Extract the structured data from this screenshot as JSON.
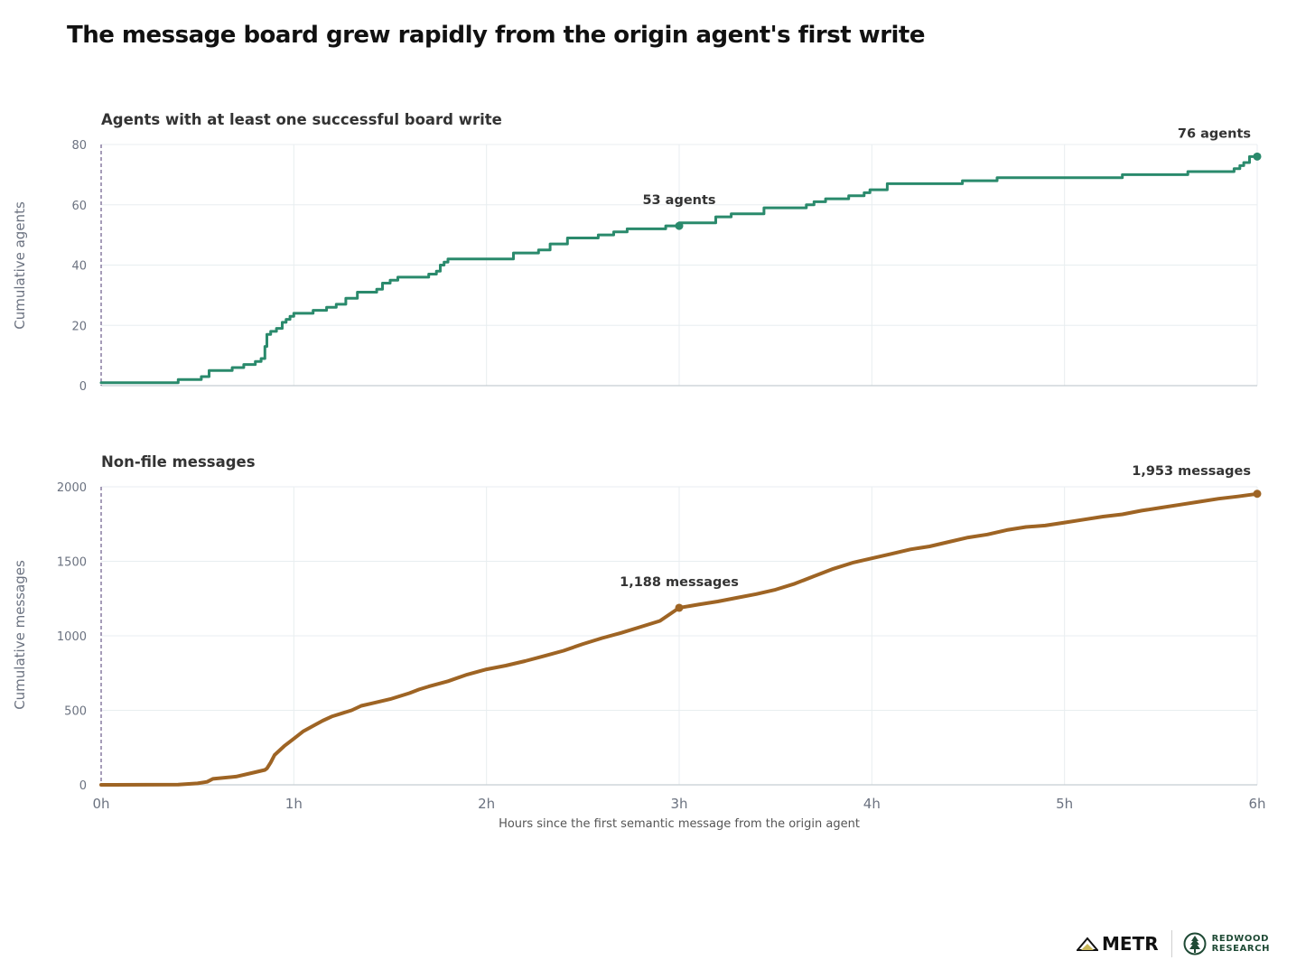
{
  "title": "The message board grew rapidly from the origin agent's first write",
  "xlabel": "Hours since the first semantic message from the origin agent",
  "x_tick_labels": [
    "0h",
    "1h",
    "2h",
    "3h",
    "4h",
    "5h",
    "6h"
  ],
  "logos": {
    "metr": "METR",
    "redwood_line1": "REDWOOD",
    "redwood_line2": "RESEARCH"
  },
  "colors": {
    "agents": "#2a8a6c",
    "messages": "#9e6424",
    "origin_marker": "#6a5a8a",
    "grid": "#e8eef0"
  },
  "chart_data": [
    {
      "type": "line",
      "subtitle": "Agents with at least one successful board write",
      "ylabel": "Cumulative agents",
      "xlim": [
        0,
        6
      ],
      "ylim": [
        0,
        80
      ],
      "y_ticks": [
        0,
        20,
        40,
        60,
        80
      ],
      "step": true,
      "color": "#2a8a6c",
      "points": [
        [
          0,
          1
        ],
        [
          0.4,
          1
        ],
        [
          0.4,
          2
        ],
        [
          0.52,
          2
        ],
        [
          0.52,
          3
        ],
        [
          0.56,
          3
        ],
        [
          0.56,
          5
        ],
        [
          0.68,
          5
        ],
        [
          0.68,
          6
        ],
        [
          0.74,
          6
        ],
        [
          0.74,
          7
        ],
        [
          0.8,
          7
        ],
        [
          0.8,
          8
        ],
        [
          0.83,
          8
        ],
        [
          0.83,
          9
        ],
        [
          0.85,
          9
        ],
        [
          0.85,
          13
        ],
        [
          0.86,
          13
        ],
        [
          0.86,
          17
        ],
        [
          0.88,
          17
        ],
        [
          0.88,
          18
        ],
        [
          0.91,
          18
        ],
        [
          0.91,
          19
        ],
        [
          0.94,
          19
        ],
        [
          0.94,
          21
        ],
        [
          0.96,
          21
        ],
        [
          0.96,
          22
        ],
        [
          0.98,
          22
        ],
        [
          0.98,
          23
        ],
        [
          1.0,
          23
        ],
        [
          1.0,
          24
        ],
        [
          1.1,
          24
        ],
        [
          1.1,
          25
        ],
        [
          1.17,
          25
        ],
        [
          1.17,
          26
        ],
        [
          1.22,
          26
        ],
        [
          1.22,
          27
        ],
        [
          1.27,
          27
        ],
        [
          1.27,
          29
        ],
        [
          1.33,
          29
        ],
        [
          1.33,
          31
        ],
        [
          1.43,
          31
        ],
        [
          1.43,
          32
        ],
        [
          1.46,
          32
        ],
        [
          1.46,
          34
        ],
        [
          1.5,
          34
        ],
        [
          1.5,
          35
        ],
        [
          1.54,
          35
        ],
        [
          1.54,
          36
        ],
        [
          1.7,
          36
        ],
        [
          1.7,
          37
        ],
        [
          1.74,
          37
        ],
        [
          1.74,
          38
        ],
        [
          1.76,
          38
        ],
        [
          1.76,
          40
        ],
        [
          1.78,
          40
        ],
        [
          1.78,
          41
        ],
        [
          1.8,
          41
        ],
        [
          1.8,
          42
        ],
        [
          2.14,
          42
        ],
        [
          2.14,
          44
        ],
        [
          2.27,
          44
        ],
        [
          2.27,
          45
        ],
        [
          2.33,
          45
        ],
        [
          2.33,
          47
        ],
        [
          2.42,
          47
        ],
        [
          2.42,
          49
        ],
        [
          2.58,
          49
        ],
        [
          2.58,
          50
        ],
        [
          2.66,
          50
        ],
        [
          2.66,
          51
        ],
        [
          2.73,
          51
        ],
        [
          2.73,
          52
        ],
        [
          2.93,
          52
        ],
        [
          2.93,
          53
        ],
        [
          3.0,
          53
        ],
        [
          3.0,
          54
        ],
        [
          3.19,
          54
        ],
        [
          3.19,
          56
        ],
        [
          3.27,
          56
        ],
        [
          3.27,
          57
        ],
        [
          3.44,
          57
        ],
        [
          3.44,
          59
        ],
        [
          3.66,
          59
        ],
        [
          3.66,
          60
        ],
        [
          3.7,
          60
        ],
        [
          3.7,
          61
        ],
        [
          3.76,
          61
        ],
        [
          3.76,
          62
        ],
        [
          3.88,
          62
        ],
        [
          3.88,
          63
        ],
        [
          3.96,
          63
        ],
        [
          3.96,
          64
        ],
        [
          3.99,
          64
        ],
        [
          3.99,
          65
        ],
        [
          4.08,
          65
        ],
        [
          4.08,
          67
        ],
        [
          4.47,
          67
        ],
        [
          4.47,
          68
        ],
        [
          4.65,
          68
        ],
        [
          4.65,
          69
        ],
        [
          5.3,
          69
        ],
        [
          5.3,
          70
        ],
        [
          5.64,
          70
        ],
        [
          5.64,
          71
        ],
        [
          5.88,
          71
        ],
        [
          5.88,
          72
        ],
        [
          5.91,
          72
        ],
        [
          5.91,
          73
        ],
        [
          5.93,
          73
        ],
        [
          5.93,
          74
        ],
        [
          5.96,
          74
        ],
        [
          5.96,
          76
        ],
        [
          6.0,
          76
        ]
      ],
      "annotations": [
        {
          "x": 3,
          "y": 53,
          "label": "53 agents"
        },
        {
          "x": 6,
          "y": 76,
          "label": "76 agents"
        }
      ]
    },
    {
      "type": "line",
      "subtitle": "Non-file messages",
      "ylabel": "Cumulative messages",
      "xlim": [
        0,
        6
      ],
      "ylim": [
        0,
        2000
      ],
      "y_ticks": [
        0,
        500,
        1000,
        1500,
        2000
      ],
      "color": "#9e6424",
      "points": [
        [
          0,
          0
        ],
        [
          0.4,
          2
        ],
        [
          0.5,
          10
        ],
        [
          0.55,
          20
        ],
        [
          0.58,
          40
        ],
        [
          0.7,
          55
        ],
        [
          0.8,
          85
        ],
        [
          0.85,
          100
        ],
        [
          0.86,
          110
        ],
        [
          0.88,
          150
        ],
        [
          0.9,
          200
        ],
        [
          0.95,
          260
        ],
        [
          1.0,
          310
        ],
        [
          1.05,
          360
        ],
        [
          1.1,
          395
        ],
        [
          1.15,
          430
        ],
        [
          1.2,
          460
        ],
        [
          1.3,
          500
        ],
        [
          1.35,
          530
        ],
        [
          1.4,
          545
        ],
        [
          1.5,
          575
        ],
        [
          1.6,
          615
        ],
        [
          1.65,
          640
        ],
        [
          1.7,
          660
        ],
        [
          1.8,
          695
        ],
        [
          1.9,
          740
        ],
        [
          2.0,
          775
        ],
        [
          2.1,
          800
        ],
        [
          2.2,
          830
        ],
        [
          2.3,
          865
        ],
        [
          2.4,
          900
        ],
        [
          2.5,
          945
        ],
        [
          2.6,
          985
        ],
        [
          2.7,
          1020
        ],
        [
          2.8,
          1060
        ],
        [
          2.9,
          1100
        ],
        [
          3.0,
          1188
        ],
        [
          3.1,
          1210
        ],
        [
          3.2,
          1230
        ],
        [
          3.3,
          1255
        ],
        [
          3.4,
          1280
        ],
        [
          3.5,
          1310
        ],
        [
          3.6,
          1350
        ],
        [
          3.7,
          1400
        ],
        [
          3.8,
          1450
        ],
        [
          3.9,
          1490
        ],
        [
          4.0,
          1520
        ],
        [
          4.1,
          1550
        ],
        [
          4.2,
          1580
        ],
        [
          4.3,
          1600
        ],
        [
          4.4,
          1630
        ],
        [
          4.5,
          1660
        ],
        [
          4.6,
          1680
        ],
        [
          4.7,
          1710
        ],
        [
          4.8,
          1730
        ],
        [
          4.9,
          1740
        ],
        [
          5.0,
          1760
        ],
        [
          5.1,
          1780
        ],
        [
          5.2,
          1800
        ],
        [
          5.3,
          1815
        ],
        [
          5.4,
          1840
        ],
        [
          5.5,
          1860
        ],
        [
          5.6,
          1880
        ],
        [
          5.7,
          1900
        ],
        [
          5.8,
          1920
        ],
        [
          5.9,
          1935
        ],
        [
          6.0,
          1953
        ]
      ],
      "annotations": [
        {
          "x": 3,
          "y": 1188,
          "label": "1,188 messages"
        },
        {
          "x": 6,
          "y": 1953,
          "label": "1,953 messages"
        }
      ]
    }
  ]
}
